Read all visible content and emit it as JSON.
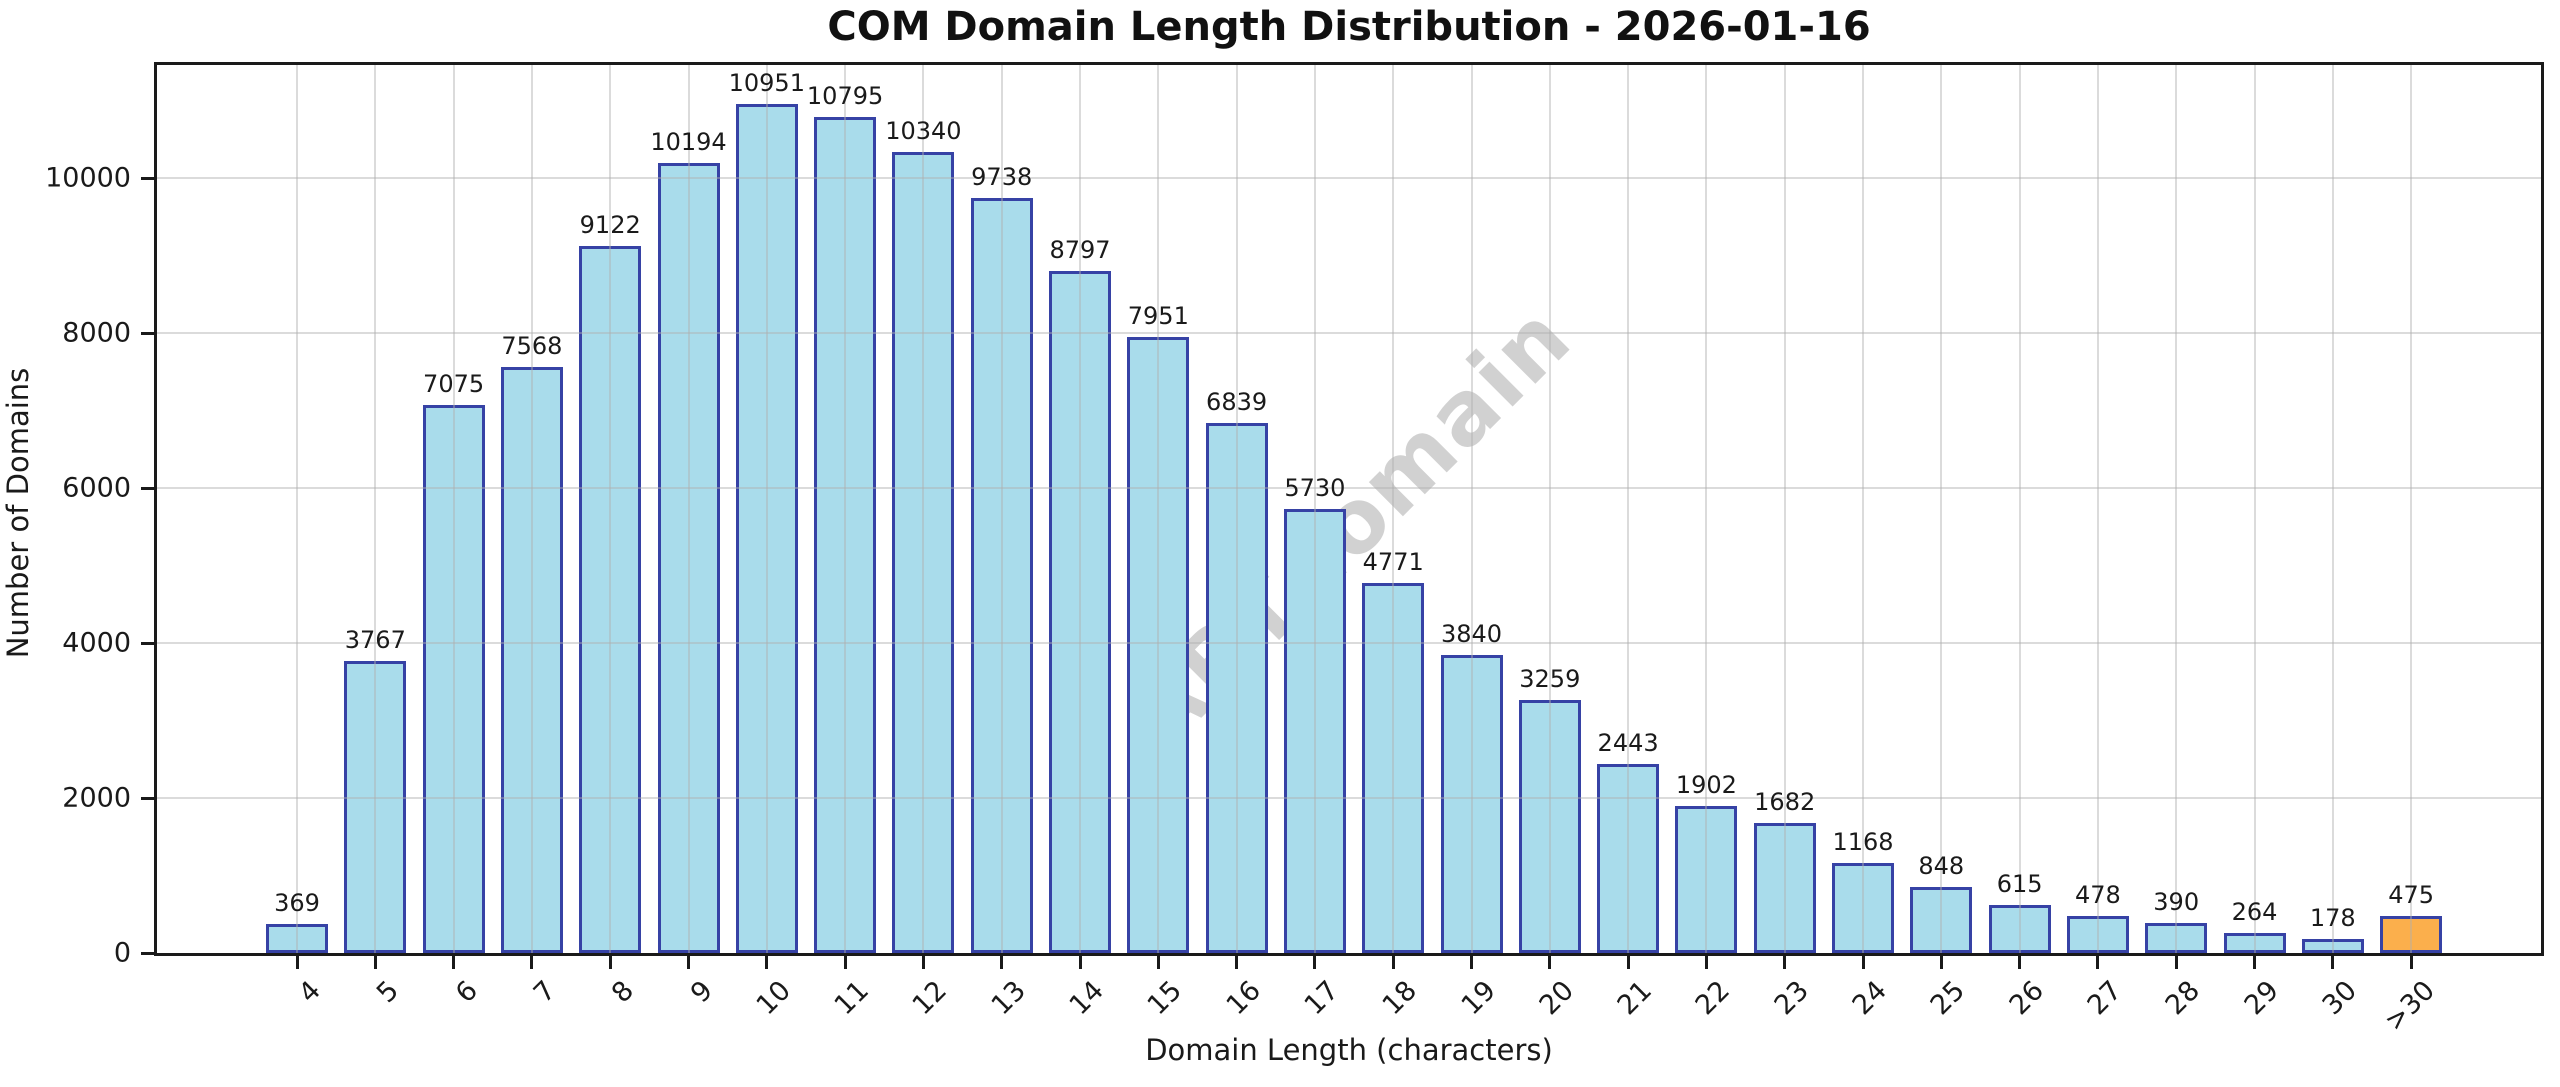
{
  "title": "COM Domain Length Distribution - 2026-01-16",
  "watermark": "ABTdomain",
  "chart_data": {
    "type": "bar",
    "title": "COM Domain Length Distribution - 2026-01-16",
    "xlabel": "Domain Length (characters)",
    "ylabel": "Number of Domains",
    "categories": [
      "4",
      "5",
      "6",
      "7",
      "8",
      "9",
      "10",
      "11",
      "12",
      "13",
      "14",
      "15",
      "16",
      "17",
      "18",
      "19",
      "20",
      "21",
      "22",
      "23",
      "24",
      "25",
      "26",
      "27",
      "28",
      "29",
      "30",
      ">30"
    ],
    "values": [
      369,
      3767,
      7075,
      7568,
      9122,
      10194,
      10951,
      10795,
      10340,
      9738,
      8797,
      7951,
      6839,
      5730,
      4771,
      3840,
      3259,
      2443,
      1902,
      1682,
      1168,
      848,
      615,
      478,
      390,
      264,
      178,
      475
    ],
    "yticks": [
      0,
      2000,
      4000,
      6000,
      8000,
      10000
    ],
    "ylim": [
      0,
      11460
    ],
    "grid": true,
    "legend": "none",
    "bar_value_labels": true,
    "highlight_index": 27,
    "colors": {
      "bar_fill": "#a9dceb",
      "bar_edge": "#3642a5",
      "highlight_fill": "#fbaf4c",
      "grid": "#dadada",
      "watermark": "#c9c9c9",
      "text": "#1a1a1a"
    }
  }
}
